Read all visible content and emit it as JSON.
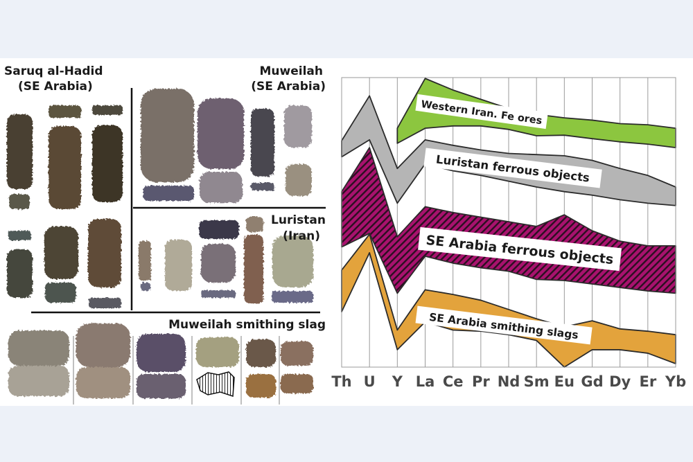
{
  "photo_panel": {
    "groups": [
      {
        "title_line1": "Saruq al-Hadid",
        "title_line2": "(SE Arabia)"
      },
      {
        "title_line1": "Muweilah",
        "title_line2": "(SE Arabia)"
      },
      {
        "title_line1": "Luristan",
        "title_line2": "(Iran)"
      },
      {
        "title_line1": "Muweilah smithing slag"
      }
    ]
  },
  "chart_data": {
    "type": "area",
    "subtype": "range-bands",
    "title": "",
    "xlabel": "",
    "ylabel": "",
    "categories": [
      "Th",
      "U",
      "Y",
      "La",
      "Ce",
      "Pr",
      "Nd",
      "Sm",
      "Eu",
      "Gd",
      "Dy",
      "Er",
      "Yb"
    ],
    "ylim": [
      0,
      100
    ],
    "grid": "vertical lines at each category",
    "y_axis_ticks_shown": false,
    "series": [
      {
        "name": "Western Iran. Fe ores",
        "color": "#8cc63f",
        "pattern": "solid",
        "upper": [
          null,
          null,
          82.5,
          99.7,
          95.7,
          92.5,
          89.3,
          87.3,
          86.1,
          85.3,
          84.1,
          83.7,
          82.5
        ],
        "lower": [
          null,
          null,
          77.3,
          82.5,
          83.3,
          83.3,
          82.1,
          79.9,
          80.1,
          78.9,
          77.8,
          77.0,
          75.8
        ]
      },
      {
        "name": "Luristan ferrous objects",
        "color": "#b5b5b5",
        "pattern": "solid",
        "upper": [
          78.2,
          93.7,
          68.6,
          78.5,
          76.6,
          75.0,
          73.8,
          73.4,
          73.0,
          71.4,
          68.6,
          66.2,
          62.2
        ],
        "lower": [
          72.6,
          78.5,
          56.6,
          70.2,
          67.8,
          66.2,
          64.2,
          62.2,
          60.6,
          59.4,
          57.8,
          56.6,
          55.8
        ]
      },
      {
        "name": "SE Arabia ferrous objects",
        "color": "#a8126e",
        "pattern": "diagonal-hatch",
        "upper": [
          60.6,
          75.8,
          45.0,
          55.4,
          53.4,
          51.8,
          50.2,
          48.6,
          52.6,
          47.1,
          43.5,
          41.9,
          41.9
        ],
        "lower": [
          41.5,
          46.2,
          25.5,
          38.3,
          35.9,
          34.3,
          33.1,
          30.3,
          29.9,
          28.7,
          27.5,
          26.3,
          25.5
        ]
      },
      {
        "name": "SE Arabia smithing slags",
        "color": "#e3a33c",
        "pattern": "solid",
        "upper": [
          33.5,
          45.9,
          12.8,
          26.7,
          25.1,
          23.1,
          19.9,
          16.7,
          13.9,
          16.0,
          13.2,
          12.4,
          11.2
        ],
        "lower": [
          19.1,
          39.5,
          6.0,
          15.6,
          12.8,
          12.4,
          11.2,
          9.2,
          0.0,
          6.0,
          6.0,
          4.8,
          1.2
        ]
      }
    ]
  }
}
